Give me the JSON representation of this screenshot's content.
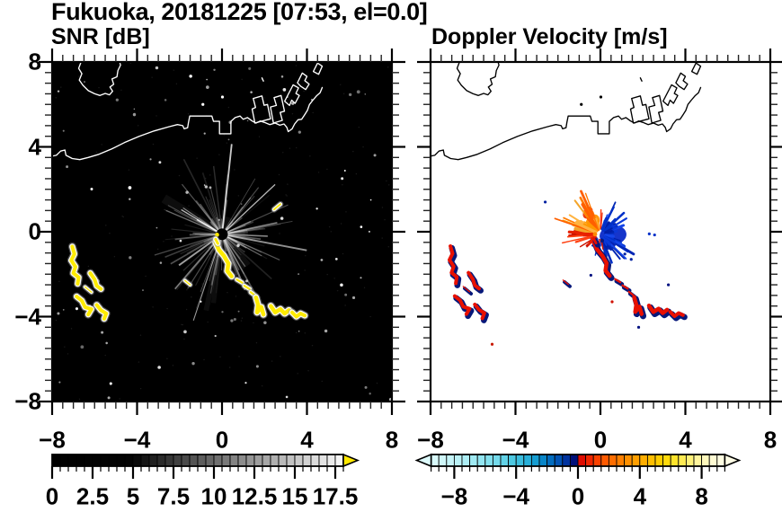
{
  "header": {
    "title": "Fukuoka, 20181225 [07:53, el=0.0]",
    "station": "Fukuoka",
    "date": "20181225",
    "time": "07:53",
    "elevation": "0.0",
    "left_panel_title": "SNR [dB]",
    "right_panel_title": "Doppler Velocity [m/s]"
  },
  "chart_data": {
    "type": "heatmap",
    "title": "Fukuoka, 20181225 [07:53, el=0.0]",
    "panels": [
      {
        "name": "SNR [dB]",
        "background": "#000000",
        "coast_color": "#ffffff",
        "echo_core_color": "#ffec00",
        "echo_halo_color": "#ffffff",
        "ray_color": "#ffffff"
      },
      {
        "name": "Doppler Velocity [m/s]",
        "background": "#ffffff",
        "coast_color": "#000000",
        "echo_core_color": "#e81000",
        "echo_fringe_color": "#06187a",
        "blue_ray_colors": [
          "#001ea8",
          "#0030c8",
          "#1545e8",
          "#0026b4",
          "#0a38d8"
        ],
        "orange_ray_colors": [
          "#ff9800",
          "#ff7b00",
          "#ffb340",
          "#ff5f00",
          "#f4a52a"
        ],
        "red_ray_colors": [
          "#e82000",
          "#ff4010",
          "#cc1400"
        ]
      }
    ],
    "axes": {
      "xlim": [
        -8,
        8
      ],
      "ylim": [
        -8,
        8
      ],
      "major_ticks": [
        -8,
        -4,
        0,
        4,
        8
      ],
      "minor_step": 0.5,
      "x_tick_values": [
        -8,
        -4,
        0,
        4,
        8
      ],
      "x_tick_labels": [
        "−8",
        "−4",
        "0",
        "4",
        "8"
      ],
      "y_tick_values": [
        8,
        4,
        0,
        -4,
        -8
      ],
      "y_tick_labels": [
        "8",
        "4",
        "0",
        "−4",
        "−8"
      ],
      "grid": false
    },
    "radar": {
      "center": [
        0,
        -0.12
      ],
      "seed_left": 20181225,
      "seed_right": 753,
      "left_ray_count": 135,
      "right_ray_count": 170
    },
    "coastline": {
      "main": [
        [
          -8.05,
          3.55
        ],
        [
          -7.8,
          3.6
        ],
        [
          -7.6,
          3.8
        ],
        [
          -7.4,
          3.85
        ],
        [
          -7.35,
          3.6
        ],
        [
          -7.05,
          3.45
        ],
        [
          -6.7,
          3.4
        ],
        [
          -6.3,
          3.5
        ],
        [
          -5.8,
          3.65
        ],
        [
          -5.2,
          3.9
        ],
        [
          -4.6,
          4.2
        ],
        [
          -3.9,
          4.5
        ],
        [
          -3.2,
          4.75
        ],
        [
          -2.5,
          4.95
        ],
        [
          -2.1,
          5.05
        ],
        [
          -1.85,
          5.0
        ],
        [
          -1.78,
          4.85
        ],
        [
          -1.62,
          4.9
        ],
        [
          -1.58,
          5.15
        ],
        [
          -1.52,
          5.45
        ],
        [
          -0.48,
          5.45
        ],
        [
          -0.4,
          5.2
        ],
        [
          -0.12,
          5.2
        ],
        [
          -0.12,
          4.62
        ],
        [
          0.42,
          4.62
        ],
        [
          0.42,
          5.2
        ],
        [
          0.62,
          5.38
        ],
        [
          0.85,
          5.45
        ],
        [
          1.0,
          5.3
        ],
        [
          1.2,
          5.38
        ],
        [
          1.42,
          5.22
        ],
        [
          1.6,
          5.12
        ],
        [
          1.8,
          5.22
        ],
        [
          2.0,
          5.15
        ],
        [
          2.25,
          5.05
        ],
        [
          2.5,
          5.12
        ],
        [
          2.72,
          5.02
        ],
        [
          2.92,
          5.08
        ],
        [
          3.05,
          4.92
        ],
        [
          3.12,
          4.72
        ],
        [
          3.3,
          4.85
        ],
        [
          3.42,
          5.08
        ],
        [
          3.58,
          5.28
        ],
        [
          3.75,
          5.3
        ],
        [
          3.88,
          5.5
        ],
        [
          4.02,
          5.72
        ],
        [
          4.12,
          6.0
        ],
        [
          4.28,
          6.2
        ],
        [
          4.45,
          6.4
        ],
        [
          4.62,
          6.55
        ],
        [
          4.72,
          6.8
        ]
      ],
      "island": [
        [
          -6.6,
          8.1
        ],
        [
          -6.75,
          7.7
        ],
        [
          -6.6,
          7.45
        ],
        [
          -6.72,
          7.15
        ],
        [
          -6.55,
          6.9
        ],
        [
          -6.3,
          6.65
        ],
        [
          -6.0,
          6.5
        ],
        [
          -5.75,
          6.42
        ],
        [
          -5.5,
          6.52
        ],
        [
          -5.3,
          6.45
        ],
        [
          -5.15,
          6.62
        ],
        [
          -5.28,
          6.82
        ],
        [
          -5.1,
          6.95
        ],
        [
          -5.18,
          7.2
        ],
        [
          -4.95,
          7.3
        ],
        [
          -4.9,
          7.6
        ],
        [
          -4.78,
          7.85
        ],
        [
          -4.85,
          8.1
        ]
      ],
      "piers": [
        [
          [
            1.55,
            5.12
          ],
          [
            1.42,
            5.78
          ],
          [
            1.58,
            5.86
          ],
          [
            1.47,
            6.28
          ],
          [
            1.88,
            6.4
          ],
          [
            1.98,
            5.96
          ],
          [
            2.14,
            6.0
          ],
          [
            2.28,
            5.32
          ],
          [
            1.9,
            5.22
          ]
        ],
        [
          [
            2.42,
            5.12
          ],
          [
            2.28,
            5.88
          ],
          [
            2.56,
            5.95
          ],
          [
            2.45,
            6.32
          ],
          [
            2.78,
            6.42
          ],
          [
            2.94,
            5.68
          ],
          [
            2.74,
            5.62
          ],
          [
            2.84,
            5.25
          ]
        ],
        [
          [
            2.95,
            6.15
          ],
          [
            3.35,
            6.92
          ],
          [
            3.6,
            6.78
          ],
          [
            3.48,
            6.52
          ],
          [
            3.64,
            6.42
          ],
          [
            3.44,
            6.05
          ],
          [
            3.28,
            6.2
          ],
          [
            3.18,
            5.95
          ]
        ],
        [
          [
            3.55,
            7.02
          ],
          [
            3.78,
            7.48
          ],
          [
            4.0,
            7.32
          ],
          [
            3.9,
            7.12
          ],
          [
            4.1,
            6.96
          ],
          [
            3.94,
            6.7
          ],
          [
            3.7,
            6.86
          ]
        ],
        [
          [
            4.3,
            7.55
          ],
          [
            4.5,
            7.95
          ],
          [
            4.72,
            7.8
          ],
          [
            4.55,
            7.42
          ]
        ],
        [
          [
            1.88,
            7.25
          ],
          [
            1.95,
            7.1
          ]
        ]
      ],
      "islets": [
        [
          0.02,
          6.35
        ],
        [
          -0.9,
          6.0
        ]
      ]
    },
    "echoes": [
      {
        "pts": [
          [
            -7.05,
            -0.7
          ],
          [
            -6.95,
            -1.05
          ],
          [
            -7.1,
            -1.35
          ],
          [
            -6.9,
            -1.65
          ],
          [
            -7.0,
            -1.95
          ],
          [
            -6.75,
            -2.15
          ],
          [
            -6.8,
            -2.45
          ]
        ],
        "w": 4
      },
      {
        "pts": [
          [
            -6.2,
            -1.95
          ],
          [
            -6.0,
            -2.25
          ],
          [
            -5.9,
            -2.55
          ],
          [
            -5.7,
            -2.7
          ]
        ],
        "w": 4
      },
      {
        "pts": [
          [
            -6.45,
            -2.6
          ],
          [
            -6.15,
            -2.85
          ]
        ],
        "w": 1.3
      },
      {
        "pts": [
          [
            -6.85,
            -3.05
          ],
          [
            -6.6,
            -3.25
          ],
          [
            -6.45,
            -3.55
          ],
          [
            -6.15,
            -3.65
          ],
          [
            -6.3,
            -3.9
          ]
        ],
        "w": 4
      },
      {
        "pts": [
          [
            -5.9,
            -3.45
          ],
          [
            -5.7,
            -3.7
          ],
          [
            -5.45,
            -3.85
          ],
          [
            -5.55,
            -4.1
          ]
        ],
        "w": 4
      },
      {
        "pts": [
          [
            -0.3,
            -0.5
          ],
          [
            -0.15,
            -0.85
          ],
          [
            0.1,
            -1.15
          ],
          [
            0.3,
            -1.5
          ],
          [
            0.25,
            -1.85
          ],
          [
            0.45,
            -2.1
          ]
        ],
        "w": 4.5
      },
      {
        "pts": [
          [
            0.7,
            -2.25
          ],
          [
            0.95,
            -2.4
          ]
        ],
        "w": 2.2
      },
      {
        "pts": [
          [
            1.05,
            -2.55
          ],
          [
            1.3,
            -2.7
          ]
        ],
        "w": 2.2
      },
      {
        "pts": [
          [
            1.35,
            -2.85
          ],
          [
            1.55,
            -3.0
          ]
        ],
        "w": 2.2
      },
      {
        "pts": [
          [
            1.6,
            -3.1
          ],
          [
            1.7,
            -3.45
          ],
          [
            1.65,
            -3.8
          ],
          [
            1.85,
            -3.55
          ],
          [
            1.95,
            -3.9
          ]
        ],
        "w": 4.5
      },
      {
        "pts": [
          [
            2.3,
            -3.5
          ],
          [
            2.5,
            -3.8
          ],
          [
            2.75,
            -3.65
          ],
          [
            2.95,
            -3.85
          ],
          [
            3.15,
            -3.7
          ]
        ],
        "w": 4.5
      },
      {
        "pts": [
          [
            3.3,
            -3.8
          ],
          [
            3.5,
            -4.0
          ],
          [
            3.7,
            -3.85
          ],
          [
            3.9,
            -3.95
          ]
        ],
        "w": 4
      },
      {
        "pts": [
          [
            -1.75,
            -2.3
          ],
          [
            -1.5,
            -2.5
          ]
        ],
        "w": 1.3
      },
      {
        "pts": [
          [
            2.45,
            1.05
          ],
          [
            2.75,
            1.3
          ]
        ],
        "w": 1.8,
        "left_only": true
      },
      {
        "pts": [
          [
            -0.3,
            -0.35
          ],
          [
            -0.2,
            -0.55
          ]
        ],
        "w": 3
      }
    ],
    "right_specks": [
      [
        1.15,
        -1.05,
        "#0020a0"
      ],
      [
        1.45,
        -1.3,
        "#0020a0"
      ],
      [
        2.3,
        -0.1,
        "#0030c8"
      ],
      [
        2.55,
        -0.15,
        "#0030c8"
      ],
      [
        -0.45,
        -2.05,
        "#001080"
      ],
      [
        3.2,
        -2.5,
        "#001080"
      ],
      [
        0.55,
        -3.3,
        "#d01000"
      ],
      [
        -5.1,
        -5.3,
        "#c81800"
      ],
      [
        -2.6,
        1.4,
        "#0020a0"
      ],
      [
        1.8,
        -4.5,
        "#001080"
      ]
    ],
    "snr_colorbar": {
      "label_of": "SNR [dB]",
      "min": 0,
      "max": 18,
      "segment": 0.5,
      "tick_values": [
        0,
        2.5,
        5,
        7.5,
        10,
        12.5,
        15,
        17.5
      ],
      "tick_labels": [
        "0",
        "2.5",
        "5",
        "7.5",
        "10",
        "12.5",
        "15",
        "17.5"
      ],
      "stops": [
        [
          0,
          "#000000"
        ],
        [
          5,
          "#040404"
        ],
        [
          7.5,
          "#3c3c3c"
        ],
        [
          10,
          "#6b6b6b"
        ],
        [
          12.5,
          "#9a9a9a"
        ],
        [
          15,
          "#c6c6c6"
        ],
        [
          17.5,
          "#efefef"
        ],
        [
          18,
          "#fbfbfb"
        ]
      ],
      "over_color": "#ffe800",
      "under_arrow": false,
      "over_arrow": true
    },
    "velocity_colorbar": {
      "label_of": "Doppler Velocity [m/s]",
      "min": -9.5,
      "max": 9.5,
      "segment": 0.5,
      "tick_values": [
        -8,
        -4,
        0,
        4,
        8
      ],
      "tick_labels": [
        "−8",
        "−4",
        "0",
        "4",
        "8"
      ],
      "stops": [
        [
          -9.5,
          "#ddfafb"
        ],
        [
          -8.0,
          "#c0f3f7"
        ],
        [
          -6.5,
          "#9ae8f2"
        ],
        [
          -5.0,
          "#6cd7e9"
        ],
        [
          -4.0,
          "#44c4e0"
        ],
        [
          -3.0,
          "#1fa8d6"
        ],
        [
          -2.5,
          "#0d92cc"
        ],
        [
          -2.0,
          "#0378c4"
        ],
        [
          -1.5,
          "#015fb9"
        ],
        [
          -1.0,
          "#0146ae"
        ],
        [
          -0.75,
          "#00339f"
        ],
        [
          -0.5,
          "#00208f"
        ],
        [
          -0.25,
          "#001079"
        ],
        [
          -0.01,
          "#000460"
        ],
        [
          0.01,
          "#d40000"
        ],
        [
          0.5,
          "#e81600"
        ],
        [
          1.0,
          "#f63300"
        ],
        [
          1.5,
          "#ff4f00"
        ],
        [
          2.0,
          "#ff6400"
        ],
        [
          2.5,
          "#ff7600"
        ],
        [
          3.0,
          "#ff8800"
        ],
        [
          3.5,
          "#ff9700"
        ],
        [
          4.0,
          "#ffa600"
        ],
        [
          4.5,
          "#ffb600"
        ],
        [
          5.0,
          "#ffc600"
        ],
        [
          5.5,
          "#ffd400"
        ],
        [
          6.0,
          "#ffdf17"
        ],
        [
          6.5,
          "#ffe83e"
        ],
        [
          7.0,
          "#ffee66"
        ],
        [
          7.5,
          "#fff38c"
        ],
        [
          8.0,
          "#fff7ae"
        ],
        [
          8.5,
          "#fffacb"
        ],
        [
          9.0,
          "#fffcdb"
        ],
        [
          9.5,
          "#fffde6"
        ]
      ],
      "under_arrow": true,
      "over_arrow": true
    }
  }
}
